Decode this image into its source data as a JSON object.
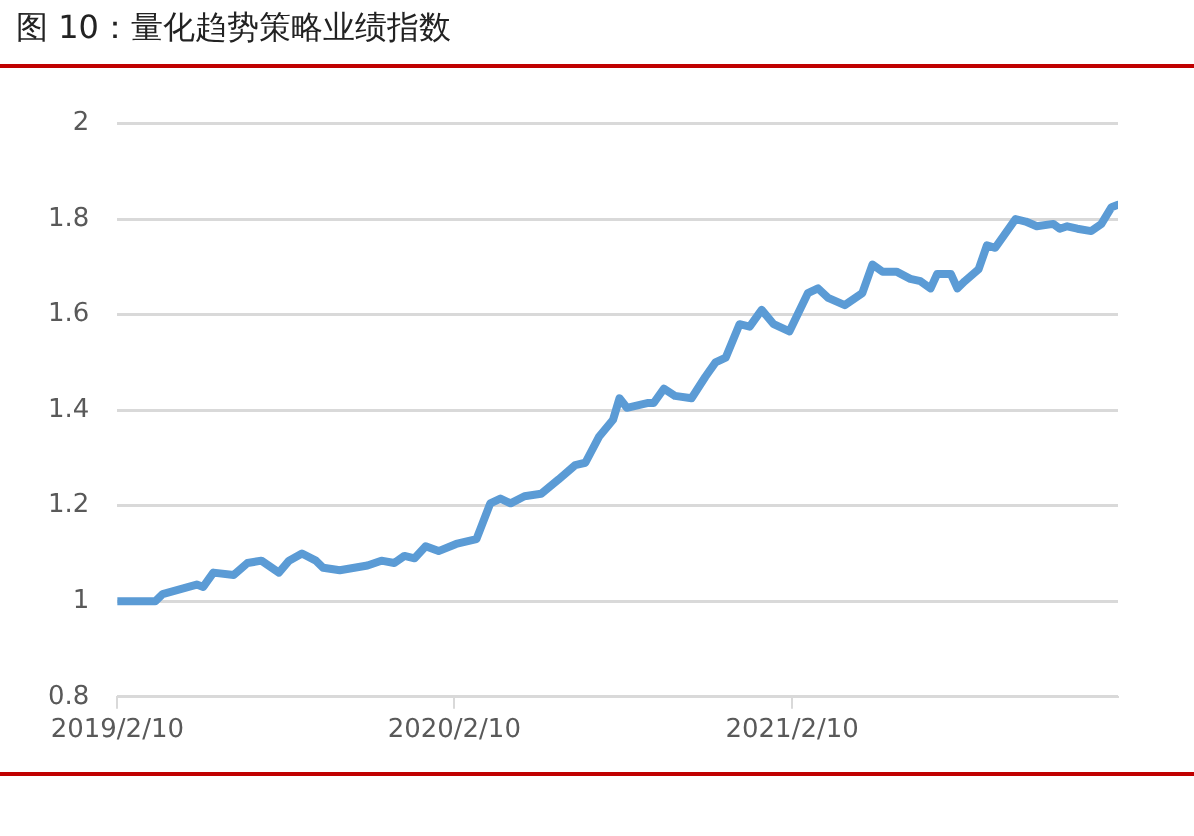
{
  "chart_data": {
    "type": "line",
    "title": "图 10：量化趋势策略业绩指数",
    "x": [
      "2019-02-10",
      "2019-03-23",
      "2019-03-31",
      "2019-05-07",
      "2019-05-14",
      "2019-05-25",
      "2019-06-16",
      "2019-07-01",
      "2019-07-16",
      "2019-08-04",
      "2019-08-15",
      "2019-08-29",
      "2019-09-13",
      "2019-09-21",
      "2019-10-09",
      "2019-11-08",
      "2019-11-23",
      "2019-12-07",
      "2019-12-18",
      "2019-12-29",
      "2020-01-10",
      "2020-01-24",
      "2020-02-12",
      "2020-03-05",
      "2020-03-09",
      "2020-03-20",
      "2020-03-31",
      "2020-04-11",
      "2020-04-26",
      "2020-05-14",
      "2020-06-02",
      "2020-06-20",
      "2020-07-01",
      "2020-07-16",
      "2020-07-31",
      "2020-08-07",
      "2020-08-15",
      "2020-09-06",
      "2020-09-13",
      "2020-09-24",
      "2020-10-06",
      "2020-10-24",
      "2020-11-08",
      "2020-11-19",
      "2020-11-30",
      "2020-12-15",
      "2020-12-26",
      "2021-01-08",
      "2021-01-21",
      "2021-02-07",
      "2021-02-27",
      "2021-03-10",
      "2021-03-21",
      "2021-04-08",
      "2021-04-27",
      "2021-05-08",
      "2021-05-19",
      "2021-06-03",
      "2021-06-18",
      "2021-06-29",
      "2021-07-10",
      "2021-07-17",
      "2021-08-01",
      "2021-08-08",
      "2021-08-16",
      "2021-08-31",
      "2021-09-09",
      "2021-09-18",
      "2021-10-10",
      "2021-10-21",
      "2021-11-02",
      "2021-11-20",
      "2021-11-27",
      "2021-12-05",
      "2021-12-16",
      "2021-12-31",
      "2022-01-11",
      "2022-01-22",
      "2022-01-29"
    ],
    "series": [
      {
        "color": "#5b9bd5",
        "values": [
          1.0,
          1.0,
          1.015,
          1.035,
          1.03,
          1.06,
          1.055,
          1.08,
          1.085,
          1.06,
          1.085,
          1.1,
          1.085,
          1.07,
          1.065,
          1.075,
          1.085,
          1.08,
          1.095,
          1.09,
          1.115,
          1.105,
          1.12,
          1.13,
          1.15,
          1.205,
          1.215,
          1.205,
          1.22,
          1.225,
          1.255,
          1.285,
          1.29,
          1.345,
          1.38,
          1.425,
          1.405,
          1.415,
          1.415,
          1.445,
          1.43,
          1.425,
          1.47,
          1.5,
          1.51,
          1.58,
          1.575,
          1.61,
          1.58,
          1.565,
          1.645,
          1.655,
          1.635,
          1.62,
          1.645,
          1.705,
          1.69,
          1.69,
          1.675,
          1.67,
          1.655,
          1.685,
          1.685,
          1.655,
          1.67,
          1.695,
          1.745,
          1.74,
          1.8,
          1.795,
          1.785,
          1.79,
          1.78,
          1.785,
          1.78,
          1.775,
          1.79,
          1.825,
          1.83
        ]
      }
    ],
    "xlim": [
      "2019-02-10",
      "2022-01-29"
    ],
    "xticks": [
      {
        "value": "2019-02-10",
        "label": "2019/2/10"
      },
      {
        "value": "2020-02-10",
        "label": "2020/2/10"
      },
      {
        "value": "2021-02-10",
        "label": "2021/2/10"
      }
    ],
    "ylim": [
      0.8,
      2
    ],
    "yticks": [
      0.8,
      1,
      1.2,
      1.4,
      1.6,
      1.8,
      2
    ],
    "grid": "y",
    "legend": false,
    "marker": "none",
    "line_style": "solid"
  }
}
